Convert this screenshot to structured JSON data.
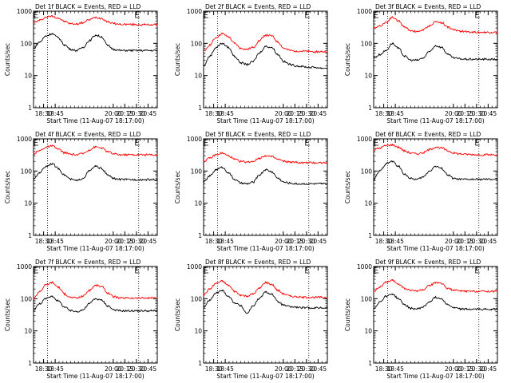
{
  "colors": {
    "events": "#000000",
    "lld": "#ff0000",
    "axis": "#000000",
    "marker": "#000000"
  },
  "chart_data": [
    {
      "type": "line",
      "title": "Det 1f BLACK = Events, RED = LLD",
      "xlabel": "Start Time (11-Aug-07 18:17:00)",
      "ylabel": "Counts/sec",
      "x_ticks": [
        "18:30",
        "18:45",
        "20:00",
        "20:15",
        "20:30",
        "20:45"
      ],
      "y_ticks": [
        "1",
        "10",
        "100",
        "1000"
      ],
      "ylim": [
        1,
        1000
      ],
      "y_scale": "log",
      "grid": "vertical dotted",
      "x": [
        "18:17",
        "18:25",
        "18:33",
        "18:41",
        "18:49",
        "18:57",
        "19:05",
        "19:13",
        "19:21",
        "19:29",
        "19:37",
        "19:45",
        "19:53",
        "20:01",
        "20:09",
        "20:17",
        "20:25",
        "20:33",
        "20:41",
        "20:49",
        "20:57"
      ],
      "series": [
        {
          "name": "LLD",
          "values": [
            430,
            520,
            650,
            700,
            610,
            480,
            410,
            400,
            440,
            540,
            640,
            600,
            470,
            410,
            390,
            390,
            385,
            380,
            380,
            380,
            380
          ]
        },
        {
          "name": "Events",
          "values": [
            70,
            110,
            170,
            200,
            150,
            90,
            65,
            60,
            75,
            120,
            180,
            160,
            85,
            65,
            60,
            60,
            60,
            60,
            60,
            60,
            60
          ]
        }
      ]
    },
    {
      "type": "line",
      "title": "Det 2f BLACK = Events, RED = LLD",
      "xlabel": "Start Time (11-Aug-07 18:17:00)",
      "ylabel": "Counts/sec",
      "x_ticks": [
        "18:30",
        "18:45",
        "20:00",
        "20:15",
        "20:30",
        "20:45"
      ],
      "y_ticks": [
        "1",
        "10",
        "100",
        "1000"
      ],
      "ylim": [
        1,
        1000
      ],
      "y_scale": "log",
      "grid": "vertical dotted",
      "x": [
        "18:17",
        "18:25",
        "18:33",
        "18:41",
        "18:49",
        "18:57",
        "19:05",
        "19:13",
        "19:21",
        "19:29",
        "19:37",
        "19:45",
        "19:53",
        "20:01",
        "20:09",
        "20:17",
        "20:25",
        "20:33",
        "20:41",
        "20:49",
        "20:57"
      ],
      "series": [
        {
          "name": "LLD",
          "values": [
            55,
            90,
            150,
            200,
            160,
            100,
            70,
            65,
            75,
            120,
            180,
            170,
            110,
            70,
            60,
            58,
            57,
            56,
            55,
            55,
            55
          ]
        },
        {
          "name": "Events",
          "values": [
            20,
            40,
            75,
            100,
            75,
            40,
            25,
            22,
            27,
            50,
            80,
            75,
            45,
            27,
            22,
            20,
            19,
            18,
            18,
            17,
            17
          ]
        }
      ]
    },
    {
      "type": "line",
      "title": "Det 3f BLACK = Events, RED = LLD",
      "xlabel": "Start Time (11-Aug-07 18:17:00)",
      "ylabel": "Counts/sec",
      "x_ticks": [
        "18:30",
        "18:45",
        "20:00",
        "20:15",
        "20:30",
        "20:45"
      ],
      "y_ticks": [
        "1",
        "10",
        "100",
        "1000"
      ],
      "ylim": [
        1,
        1000
      ],
      "y_scale": "log",
      "grid": "vertical dotted",
      "x": [
        "18:17",
        "18:25",
        "18:33",
        "18:41",
        "18:49",
        "18:57",
        "19:05",
        "19:13",
        "19:21",
        "19:29",
        "19:37",
        "19:45",
        "19:53",
        "20:01",
        "20:09",
        "20:17",
        "20:25",
        "20:33",
        "20:41",
        "20:49",
        "20:57"
      ],
      "series": [
        {
          "name": "LLD",
          "values": [
            300,
            350,
            450,
            650,
            500,
            320,
            250,
            230,
            260,
            350,
            470,
            440,
            320,
            260,
            240,
            230,
            225,
            220,
            220,
            220,
            220
          ]
        },
        {
          "name": "Events",
          "values": [
            35,
            45,
            60,
            100,
            70,
            40,
            30,
            30,
            35,
            55,
            85,
            75,
            45,
            35,
            33,
            32,
            32,
            32,
            32,
            32,
            32
          ]
        }
      ]
    },
    {
      "type": "line",
      "title": "Det 4f BLACK = Events, RED = LLD",
      "xlabel": "Start Time (11-Aug-07 18:17:00)",
      "ylabel": "Counts/sec",
      "x_ticks": [
        "18:30",
        "18:45",
        "20:00",
        "20:15",
        "20:30",
        "20:45"
      ],
      "y_ticks": [
        "1",
        "10",
        "100",
        "1000"
      ],
      "ylim": [
        1,
        1000
      ],
      "y_scale": "log",
      "grid": "vertical dotted",
      "x": [
        "18:17",
        "18:25",
        "18:33",
        "18:41",
        "18:49",
        "18:57",
        "19:05",
        "19:13",
        "19:21",
        "19:29",
        "19:37",
        "19:45",
        "19:53",
        "20:01",
        "20:09",
        "20:17",
        "20:25",
        "20:33",
        "20:41",
        "20:49",
        "20:57"
      ],
      "series": [
        {
          "name": "LLD",
          "values": [
            350,
            430,
            550,
            600,
            480,
            370,
            330,
            320,
            350,
            450,
            560,
            520,
            400,
            340,
            320,
            320,
            320,
            320,
            320,
            320,
            320
          ]
        },
        {
          "name": "Events",
          "values": [
            55,
            90,
            140,
            170,
            120,
            75,
            55,
            50,
            60,
            100,
            140,
            120,
            75,
            58,
            55,
            54,
            54,
            54,
            54,
            54,
            54
          ]
        }
      ]
    },
    {
      "type": "line",
      "title": "Det 5f BLACK = Events, RED = LLD",
      "xlabel": "Start Time (11-Aug-07 18:17:00)",
      "ylabel": "Counts/sec",
      "x_ticks": [
        "18:30",
        "18:45",
        "20:00",
        "20:15",
        "20:30",
        "20:45"
      ],
      "y_ticks": [
        "1",
        "10",
        "100",
        "1000"
      ],
      "ylim": [
        1,
        1000
      ],
      "y_scale": "log",
      "grid": "vertical dotted",
      "x": [
        "18:17",
        "18:25",
        "18:33",
        "18:41",
        "18:49",
        "18:57",
        "19:05",
        "19:13",
        "19:21",
        "19:29",
        "19:37",
        "19:45",
        "19:53",
        "20:01",
        "20:09",
        "20:17",
        "20:25",
        "20:33",
        "20:41",
        "20:49",
        "20:57"
      ],
      "series": [
        {
          "name": "LLD",
          "values": [
            200,
            250,
            320,
            360,
            300,
            230,
            200,
            190,
            200,
            250,
            300,
            280,
            230,
            200,
            190,
            185,
            180,
            180,
            180,
            180,
            180
          ]
        },
        {
          "name": "Events",
          "values": [
            45,
            70,
            110,
            130,
            90,
            55,
            42,
            40,
            45,
            75,
            110,
            95,
            60,
            45,
            42,
            40,
            40,
            40,
            40,
            40,
            40
          ]
        }
      ]
    },
    {
      "type": "line",
      "title": "Det 6f BLACK = Events, RED = LLD",
      "xlabel": "Start Time (11-Aug-07 18:17:00)",
      "ylabel": "Counts/sec",
      "x_ticks": [
        "18:30",
        "18:45",
        "20:00",
        "20:15",
        "20:30",
        "20:45"
      ],
      "y_ticks": [
        "1",
        "10",
        "100",
        "1000"
      ],
      "ylim": [
        1,
        1000
      ],
      "y_scale": "log",
      "grid": "vertical dotted",
      "x": [
        "18:17",
        "18:25",
        "18:33",
        "18:41",
        "18:49",
        "18:57",
        "19:05",
        "19:13",
        "19:21",
        "19:29",
        "19:37",
        "19:45",
        "19:53",
        "20:01",
        "20:09",
        "20:17",
        "20:25",
        "20:33",
        "20:41",
        "20:49",
        "20:57"
      ],
      "series": [
        {
          "name": "LLD",
          "values": [
            450,
            520,
            620,
            650,
            550,
            420,
            360,
            340,
            370,
            460,
            550,
            520,
            420,
            360,
            340,
            330,
            325,
            320,
            320,
            320,
            320
          ]
        },
        {
          "name": "Events",
          "values": [
            55,
            100,
            170,
            200,
            140,
            80,
            58,
            55,
            65,
            100,
            140,
            120,
            75,
            58,
            55,
            55,
            55,
            55,
            55,
            55,
            55
          ]
        }
      ]
    },
    {
      "type": "line",
      "title": "Det 7f BLACK = Events, RED = LLD",
      "xlabel": "Start Time (11-Aug-07 18:17:00)",
      "ylabel": "Counts/sec",
      "x_ticks": [
        "18:30",
        "18:45",
        "20:00",
        "20:15",
        "20:30",
        "20:45"
      ],
      "y_ticks": [
        "1",
        "10",
        "100",
        "1000"
      ],
      "ylim": [
        1,
        1000
      ],
      "y_scale": "log",
      "grid": "vertical dotted",
      "x": [
        "18:17",
        "18:25",
        "18:33",
        "18:41",
        "18:49",
        "18:57",
        "19:05",
        "19:13",
        "19:21",
        "19:29",
        "19:37",
        "19:45",
        "19:53",
        "20:01",
        "20:09",
        "20:17",
        "20:25",
        "20:33",
        "20:41",
        "20:49",
        "20:57"
      ],
      "series": [
        {
          "name": "LLD",
          "values": [
            100,
            170,
            270,
            320,
            230,
            140,
            110,
            105,
            120,
            180,
            260,
            240,
            150,
            115,
            105,
            105,
            105,
            105,
            105,
            105,
            105
          ]
        },
        {
          "name": "Events",
          "values": [
            45,
            70,
            100,
            120,
            85,
            55,
            42,
            40,
            45,
            70,
            100,
            90,
            60,
            45,
            42,
            42,
            42,
            42,
            42,
            42,
            42
          ]
        }
      ]
    },
    {
      "type": "line",
      "title": "Det 8f BLACK = Events, RED = LLD",
      "xlabel": "Start Time (11-Aug-07 18:17:00)",
      "ylabel": "Counts/sec",
      "x_ticks": [
        "18:30",
        "18:45",
        "20:00",
        "20:15",
        "20:30",
        "20:45"
      ],
      "y_ticks": [
        "1",
        "10",
        "100",
        "1000"
      ],
      "ylim": [
        1,
        1000
      ],
      "y_scale": "log",
      "grid": "vertical dotted",
      "x": [
        "18:17",
        "18:25",
        "18:33",
        "18:41",
        "18:49",
        "18:57",
        "19:05",
        "19:13",
        "19:21",
        "19:29",
        "19:37",
        "19:45",
        "19:53",
        "20:01",
        "20:09",
        "20:17",
        "20:25",
        "20:33",
        "20:41",
        "20:49",
        "20:57"
      ],
      "series": [
        {
          "name": "LLD",
          "values": [
            130,
            200,
            300,
            350,
            260,
            170,
            130,
            120,
            140,
            210,
            320,
            280,
            180,
            140,
            120,
            115,
            110,
            110,
            110,
            110,
            110
          ]
        },
        {
          "name": "Events",
          "values": [
            55,
            90,
            150,
            180,
            120,
            75,
            60,
            35,
            60,
            100,
            160,
            140,
            80,
            62,
            56,
            54,
            52,
            52,
            52,
            52,
            52
          ]
        }
      ]
    },
    {
      "type": "line",
      "title": "Det 9f BLACK = Events, RED = LLD",
      "xlabel": "Start Time (11-Aug-07 18:17:00)",
      "ylabel": "Counts/sec",
      "x_ticks": [
        "18:30",
        "18:45",
        "20:00",
        "20:15",
        "20:30",
        "20:45"
      ],
      "y_ticks": [
        "1",
        "10",
        "100",
        "1000"
      ],
      "ylim": [
        1,
        1000
      ],
      "y_scale": "log",
      "grid": "vertical dotted",
      "x": [
        "18:17",
        "18:25",
        "18:33",
        "18:41",
        "18:49",
        "18:57",
        "19:05",
        "19:13",
        "19:21",
        "19:29",
        "19:37",
        "19:45",
        "19:53",
        "20:01",
        "20:09",
        "20:17",
        "20:25",
        "20:33",
        "20:41",
        "20:49",
        "20:57"
      ],
      "series": [
        {
          "name": "LLD",
          "values": [
            170,
            230,
            320,
            370,
            290,
            210,
            180,
            175,
            190,
            250,
            320,
            290,
            210,
            180,
            175,
            170,
            170,
            170,
            170,
            170,
            170
          ]
        },
        {
          "name": "Events",
          "values": [
            50,
            80,
            120,
            140,
            100,
            65,
            50,
            48,
            55,
            80,
            110,
            100,
            65,
            52,
            48,
            47,
            47,
            47,
            47,
            47,
            47
          ]
        }
      ]
    }
  ]
}
